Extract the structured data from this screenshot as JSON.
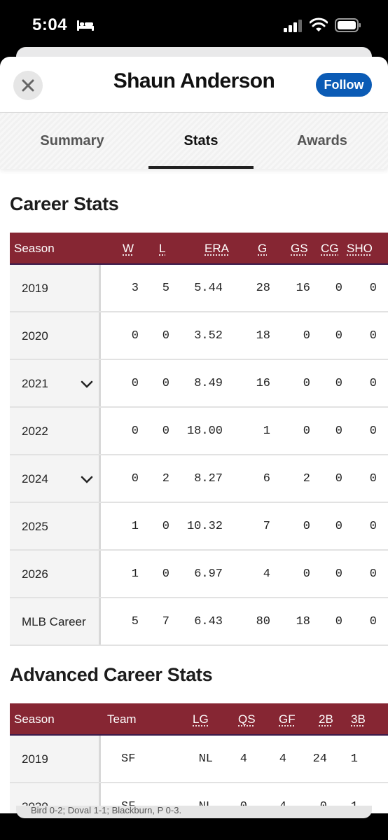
{
  "status_bar": {
    "time": "5:04"
  },
  "header": {
    "player_name": "Shaun Anderson",
    "follow_label": "Follow"
  },
  "tabs": [
    {
      "label": "Summary",
      "active": false
    },
    {
      "label": "Stats",
      "active": true
    },
    {
      "label": "Awards",
      "active": false
    }
  ],
  "career": {
    "title": "Career Stats",
    "columns": [
      "Season",
      "W",
      "L",
      "ERA",
      "G",
      "GS",
      "CG",
      "SHO"
    ],
    "rows": [
      {
        "season": "2019",
        "expand": false,
        "values": [
          "3",
          "5",
          "5.44",
          "28",
          "16",
          "0",
          "0"
        ]
      },
      {
        "season": "2020",
        "expand": false,
        "values": [
          "0",
          "0",
          "3.52",
          "18",
          "0",
          "0",
          "0"
        ]
      },
      {
        "season": "2021",
        "expand": true,
        "values": [
          "0",
          "0",
          "8.49",
          "16",
          "0",
          "0",
          "0"
        ]
      },
      {
        "season": "2022",
        "expand": false,
        "values": [
          "0",
          "0",
          "18.00",
          "1",
          "0",
          "0",
          "0"
        ]
      },
      {
        "season": "2024",
        "expand": true,
        "values": [
          "0",
          "2",
          "8.27",
          "6",
          "2",
          "0",
          "0"
        ]
      },
      {
        "season": "2025",
        "expand": false,
        "values": [
          "1",
          "0",
          "10.32",
          "7",
          "0",
          "0",
          "0"
        ]
      },
      {
        "season": "2026",
        "expand": false,
        "values": [
          "1",
          "0",
          "6.97",
          "4",
          "0",
          "0",
          "0"
        ]
      },
      {
        "season": "MLB Career",
        "expand": false,
        "values": [
          "5",
          "7",
          "6.43",
          "80",
          "18",
          "0",
          "0"
        ]
      }
    ]
  },
  "advanced": {
    "title": "Advanced Career Stats",
    "columns": [
      "Season",
      "Team",
      "LG",
      "QS",
      "GF",
      "2B",
      "3B"
    ],
    "rows": [
      {
        "season": "2019",
        "values": [
          "SF",
          "NL",
          "4",
          "4",
          "24",
          "1"
        ]
      },
      {
        "season": "2020",
        "values": [
          "SF",
          "NL",
          "0",
          "4",
          "0",
          "1"
        ]
      }
    ]
  },
  "ticker": {
    "text": "Bird 0-2; Doval 1-1; Blackburn, P 0-3."
  },
  "colors": {
    "table_header": "#862633",
    "follow_button": "#0b5bb5"
  }
}
